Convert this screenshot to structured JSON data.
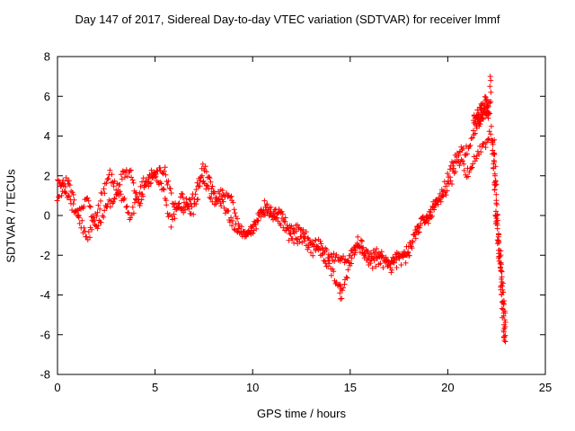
{
  "title": "Day 147 of 2017, Sidereal Day-to-day VTEC variation (SDTVAR) for receiver lmmf",
  "chart_data": {
    "type": "scatter",
    "title": "Day 147 of 2017, Sidereal Day-to-day VTEC variation (SDTVAR) for receiver lmmf",
    "xlabel": "GPS time / hours",
    "ylabel": "SDTVAR / TECUs",
    "xlim": [
      0,
      25
    ],
    "ylim": [
      -8,
      8
    ],
    "xticks": [
      0,
      5,
      10,
      15,
      20,
      25
    ],
    "yticks": [
      -8,
      -6,
      -4,
      -2,
      0,
      2,
      4,
      6,
      8
    ],
    "grid": false,
    "legend": "none",
    "marker": "plus",
    "marker_color": "#ff0000",
    "axis_color": "#000000",
    "series": [
      {
        "name": "vtec-track-a",
        "mode": "anchors",
        "step": 0.05,
        "noise_y": 0.22,
        "noise_x": 0.02,
        "seed": 11,
        "anchors": [
          [
            0,
            1.9
          ],
          [
            0.3,
            1.4
          ],
          [
            0.7,
            0.5
          ],
          [
            1.1,
            0.2
          ],
          [
            1.5,
            0.8
          ],
          [
            2.0,
            -0.6
          ],
          [
            2.4,
            0.1
          ],
          [
            2.9,
            0.9
          ],
          [
            3.3,
            2.0
          ],
          [
            3.8,
            2.1
          ],
          [
            4.2,
            0.6
          ],
          [
            4.7,
            1.7
          ],
          [
            5.1,
            2.3
          ],
          [
            5.5,
            2.1
          ],
          [
            6.0,
            0.6
          ],
          [
            6.5,
            0.2
          ],
          [
            7.0,
            1.1
          ],
          [
            7.5,
            2.4
          ],
          [
            8.0,
            1.3
          ],
          [
            8.5,
            0.4
          ],
          [
            9.0,
            -0.3
          ],
          [
            9.6,
            -1.1
          ],
          [
            10.2,
            -0.2
          ],
          [
            10.8,
            0.3
          ],
          [
            11.4,
            0.0
          ],
          [
            12.0,
            -0.6
          ],
          [
            12.7,
            -0.9
          ],
          [
            13.4,
            -1.5
          ],
          [
            14.0,
            -2.0
          ],
          [
            14.6,
            -2.3
          ],
          [
            15.2,
            -1.7
          ],
          [
            15.8,
            -1.8
          ],
          [
            16.4,
            -2.0
          ],
          [
            17.0,
            -2.3
          ],
          [
            17.6,
            -2.1
          ],
          [
            18.1,
            -1.4
          ],
          [
            18.6,
            -0.4
          ],
          [
            19.1,
            0.3
          ],
          [
            19.6,
            0.9
          ],
          [
            20.1,
            2.3
          ],
          [
            20.6,
            3.2
          ],
          [
            21.1,
            3.5
          ],
          [
            21.6,
            4.7
          ],
          [
            22.0,
            5.5
          ],
          [
            22.25,
            5.6
          ]
        ]
      },
      {
        "name": "vtec-track-b",
        "mode": "anchors",
        "step": 0.05,
        "noise_y": 0.3,
        "noise_x": 0.02,
        "seed": 23,
        "anchors": [
          [
            0,
            1.1
          ],
          [
            0.5,
            1.8
          ],
          [
            1.0,
            0.1
          ],
          [
            1.6,
            -1.2
          ],
          [
            2.1,
            0.6
          ],
          [
            2.7,
            1.9
          ],
          [
            3.2,
            1.3
          ],
          [
            3.7,
            -0.1
          ],
          [
            4.3,
            1.4
          ],
          [
            4.8,
            2.2
          ],
          [
            5.3,
            1.8
          ],
          [
            5.8,
            -0.4
          ],
          [
            6.3,
            0.9
          ],
          [
            6.9,
            0.2
          ],
          [
            7.4,
            1.8
          ],
          [
            7.9,
            0.9
          ],
          [
            8.4,
            1.0
          ],
          [
            8.9,
            0.9
          ],
          [
            9.4,
            -0.9
          ],
          [
            10.0,
            -0.8
          ],
          [
            10.6,
            0.4
          ],
          [
            11.2,
            0.1
          ],
          [
            11.8,
            -0.9
          ],
          [
            12.5,
            -1.2
          ],
          [
            13.2,
            -1.7
          ],
          [
            13.8,
            -2.3
          ],
          [
            14.3,
            -3.2
          ],
          [
            14.55,
            -4.0
          ],
          [
            14.9,
            -2.7
          ],
          [
            15.4,
            -1.4
          ],
          [
            16.0,
            -2.3
          ],
          [
            16.6,
            -2.4
          ],
          [
            17.2,
            -2.5
          ],
          [
            17.8,
            -2.2
          ],
          [
            18.3,
            -1.1
          ],
          [
            18.9,
            -0.1
          ],
          [
            19.5,
            0.5
          ],
          [
            20.0,
            1.6
          ],
          [
            20.6,
            2.6
          ],
          [
            21.1,
            2.2
          ],
          [
            21.6,
            3.2
          ],
          [
            22.0,
            3.9
          ],
          [
            22.3,
            4.3
          ]
        ]
      },
      {
        "name": "peak-cluster",
        "mode": "anchors",
        "step": 0.012,
        "noise_y": 0.5,
        "noise_x": 0.05,
        "seed": 37,
        "anchors": [
          [
            21.35,
            4.4
          ],
          [
            21.65,
            5.1
          ],
          [
            21.95,
            5.7
          ],
          [
            22.15,
            5.2
          ]
        ]
      },
      {
        "name": "post-peak-descent",
        "mode": "anchors",
        "step": 0.006,
        "noise_y": 0.3,
        "noise_x": 0.07,
        "seed": 51,
        "anchors": [
          [
            22.3,
            4.0
          ],
          [
            22.55,
            -0.5
          ],
          [
            22.75,
            -3.2
          ],
          [
            22.95,
            -6.3
          ]
        ]
      },
      {
        "name": "outlier-points",
        "mode": "points",
        "points": [
          [
            22.18,
            7.0
          ],
          [
            22.2,
            6.8
          ],
          [
            22.16,
            6.5
          ],
          [
            22.21,
            6.2
          ],
          [
            14.5,
            -4.2
          ],
          [
            14.47,
            -3.9
          ],
          [
            14.53,
            -3.7
          ],
          [
            22.9,
            -6.1
          ],
          [
            22.95,
            -6.35
          ]
        ]
      }
    ]
  }
}
